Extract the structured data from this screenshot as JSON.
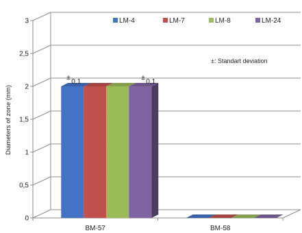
{
  "chart_data": {
    "type": "bar",
    "categories": [
      "BM-57",
      "BM-58"
    ],
    "series": [
      {
        "name": "LM-4",
        "values": [
          2,
          0
        ],
        "color": "#4472C4"
      },
      {
        "name": "LM-7",
        "values": [
          2,
          0
        ],
        "color": "#C0504D"
      },
      {
        "name": "LM-8",
        "values": [
          2,
          0
        ],
        "color": "#9BBB59"
      },
      {
        "name": "LM-24",
        "values": [
          2,
          0
        ],
        "color": "#8064A2"
      }
    ],
    "ylabel": "Diameters of zone (mm)",
    "ylim": [
      0,
      3
    ],
    "ytick_labels": [
      "0",
      "0,5",
      "1",
      "1,5",
      "2",
      "2,5",
      "3"
    ],
    "grid": true,
    "legend_position": "top-right",
    "annotation": "±: Standart deviation",
    "error_labels": [
      "0,1",
      "0,1"
    ],
    "error_symbol": "±"
  }
}
